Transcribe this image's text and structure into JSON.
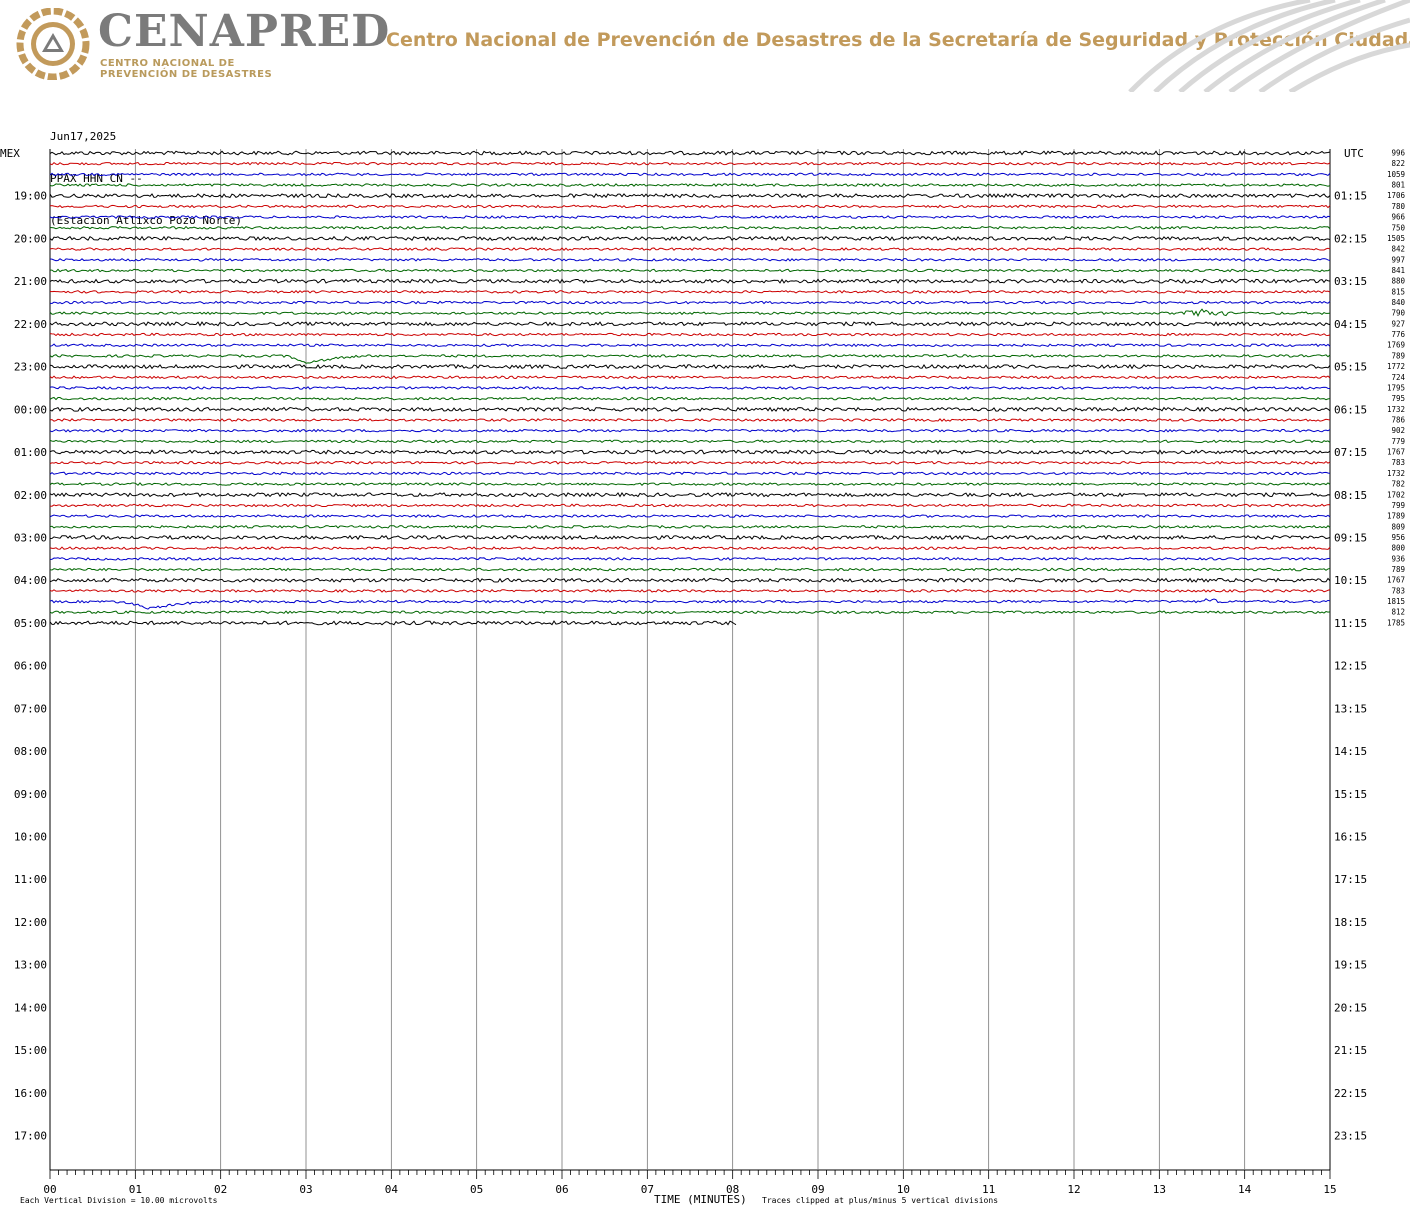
{
  "header": {
    "brand": "CENAPRED",
    "brand_sub_line1": "CENTRO NACIONAL DE",
    "brand_sub_line2": "PREVENCIÓN DE DESASTRES",
    "org_name": "Centro Nacional de Prevención de Desastres de la Secretaría de Seguridad y Protección Ciudadana",
    "logo_icon": "cenapred-triangle-logo",
    "colors": {
      "brand_gray": "#7b7b7b",
      "gold": "#c29a5b"
    }
  },
  "plot_meta": {
    "date": "Jun17,2025",
    "channel": "PPAX HHN CN --",
    "station": "(Estacion Atlixco Pozo Norte)"
  },
  "chart_data": {
    "type": "line",
    "subtype": "helicorder",
    "left_axis_label": "MEX",
    "right_axis_label": "UTC",
    "xlabel": "TIME (MINUTES)",
    "x_ticks": [
      "00",
      "01",
      "02",
      "03",
      "04",
      "05",
      "06",
      "07",
      "08",
      "09",
      "10",
      "11",
      "12",
      "13",
      "14",
      "15"
    ],
    "xlim": [
      0,
      15
    ],
    "left_hour_labels": [
      "19:00",
      "20:00",
      "21:00",
      "22:00",
      "23:00",
      "00:00",
      "01:00",
      "02:00",
      "03:00",
      "04:00",
      "05:00",
      "06:00",
      "07:00",
      "08:00",
      "09:00",
      "10:00",
      "11:00",
      "12:00",
      "13:00",
      "14:00",
      "15:00",
      "16:00",
      "17:00"
    ],
    "right_hour_labels": [
      "01:15",
      "02:15",
      "03:15",
      "04:15",
      "05:15",
      "06:15",
      "07:15",
      "08:15",
      "09:15",
      "10:15",
      "11:15",
      "12:15",
      "13:15",
      "14:15",
      "15:15",
      "16:15",
      "17:15",
      "18:15",
      "19:15",
      "20:15",
      "21:15",
      "22:15",
      "23:15"
    ],
    "trace_colors": [
      "#000000",
      "#cc0000",
      "#0000cc",
      "#006600"
    ],
    "trace_scale_values": [
      "996",
      "822",
      "1059",
      "801",
      "1706",
      "780",
      "966",
      "750",
      "1505",
      "842",
      "997",
      "841",
      "880",
      "815",
      "840",
      "790",
      "927",
      "776",
      "1769",
      "789",
      "1772",
      "724",
      "1795",
      "795",
      "1732",
      "786",
      "902",
      "779",
      "1767",
      "783",
      "1732",
      "782",
      "1702",
      "799",
      "1789",
      "809",
      "956",
      "800",
      "936",
      "789",
      "1767",
      "783",
      "1815",
      "812",
      "1785"
    ],
    "last_trace_end_minute": 8.05,
    "events": [
      {
        "trace_index": 19,
        "start_minute": 2.7,
        "peak_minute": 3.0,
        "end_minute": 4.0,
        "note": "long-period dip"
      },
      {
        "trace_index": 42,
        "start_minute": 0.7,
        "peak_minute": 1.15,
        "end_minute": 2.3,
        "note": "long-period dip"
      },
      {
        "trace_index": 15,
        "start_minute": 13.3,
        "peak_minute": 13.6,
        "end_minute": 13.8,
        "note": "small burst"
      },
      {
        "trace_index": 42,
        "start_minute": 13.5,
        "peak_minute": 13.6,
        "end_minute": 13.7,
        "note": "small burst"
      }
    ],
    "footer_left": "Each Vertical Division =   10.00 microvolts",
    "footer_right": "Traces clipped at plus/minus 5 vertical divisions",
    "grid": true
  }
}
